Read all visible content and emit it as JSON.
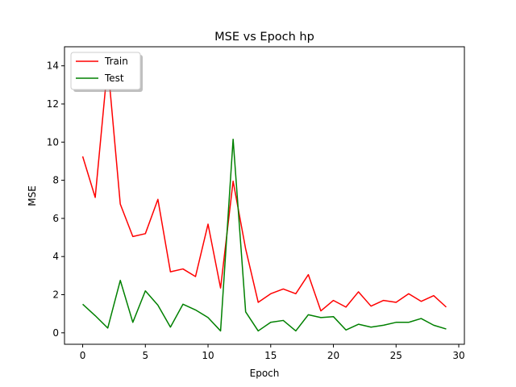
{
  "chart_data": {
    "type": "line",
    "title": "MSE vs Epoch hp",
    "xlabel": "Epoch",
    "ylabel": "MSE",
    "xlim": [
      -1.45,
      30.45
    ],
    "ylim": [
      -0.6,
      15.0
    ],
    "xticks": [
      0,
      5,
      10,
      15,
      20,
      25,
      30
    ],
    "yticks": [
      0,
      2,
      4,
      6,
      8,
      10,
      12,
      14
    ],
    "grid": false,
    "legend_position": "top-left",
    "x": [
      0,
      1,
      2,
      3,
      4,
      5,
      6,
      7,
      8,
      9,
      10,
      11,
      12,
      13,
      14,
      15,
      16,
      17,
      18,
      19,
      20,
      21,
      22,
      23,
      24,
      25,
      26,
      27,
      28,
      29
    ],
    "series": [
      {
        "name": "Train",
        "color": "#ff0000",
        "values": [
          9.25,
          7.1,
          14.1,
          6.75,
          5.05,
          5.2,
          7.0,
          3.2,
          3.35,
          2.95,
          5.7,
          2.35,
          7.95,
          4.4,
          1.6,
          2.05,
          2.3,
          2.05,
          3.05,
          1.15,
          1.7,
          1.35,
          2.15,
          1.4,
          1.7,
          1.6,
          2.05,
          1.65,
          1.95,
          1.35
        ]
      },
      {
        "name": "Test",
        "color": "#008000",
        "values": [
          1.5,
          0.9,
          0.25,
          2.75,
          0.55,
          2.2,
          1.45,
          0.3,
          1.5,
          1.2,
          0.8,
          0.1,
          10.15,
          1.1,
          0.1,
          0.55,
          0.65,
          0.1,
          0.95,
          0.8,
          0.85,
          0.15,
          0.45,
          0.3,
          0.4,
          0.55,
          0.55,
          0.75,
          0.4,
          0.2
        ]
      }
    ]
  }
}
